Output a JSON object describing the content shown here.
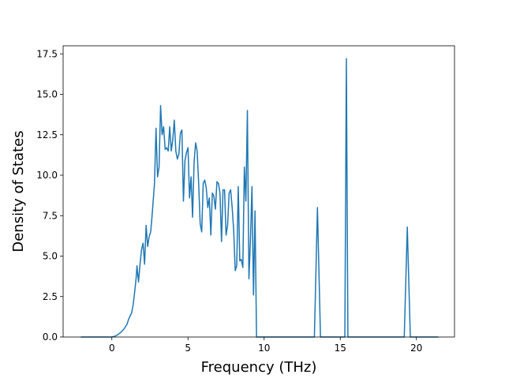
{
  "chart_data": {
    "type": "line",
    "xlabel": "Frequency (THz)",
    "ylabel": "Density of States",
    "xlim": [
      -3.2,
      22.5
    ],
    "ylim": [
      0,
      18
    ],
    "xticks": [
      0,
      5,
      10,
      15,
      20
    ],
    "yticks": [
      0.0,
      2.5,
      5.0,
      7.5,
      10.0,
      12.5,
      15.0,
      17.5
    ],
    "xtick_labels": [
      "0",
      "5",
      "10",
      "15",
      "20"
    ],
    "ytick_labels": [
      "0.0",
      "2.5",
      "5.0",
      "7.5",
      "10.0",
      "12.5",
      "15.0",
      "17.5"
    ],
    "grid": false,
    "series": [
      {
        "color": "#1f77b4",
        "x": [
          -2.0,
          -1.0,
          0.0,
          0.2,
          0.4,
          0.6,
          0.8,
          1.0,
          1.1,
          1.3,
          1.4,
          1.5,
          1.6,
          1.65,
          1.75,
          1.85,
          1.95,
          2.05,
          2.15,
          2.25,
          2.35,
          2.45,
          2.55,
          2.65,
          2.8,
          2.9,
          3.0,
          3.1,
          3.2,
          3.3,
          3.4,
          3.5,
          3.6,
          3.7,
          3.8,
          3.9,
          4.0,
          4.1,
          4.2,
          4.3,
          4.4,
          4.5,
          4.6,
          4.7,
          4.8,
          4.9,
          5.0,
          5.1,
          5.2,
          5.3,
          5.4,
          5.5,
          5.6,
          5.7,
          5.8,
          5.9,
          6.0,
          6.1,
          6.2,
          6.3,
          6.4,
          6.5,
          6.6,
          6.7,
          6.8,
          6.9,
          7.0,
          7.1,
          7.2,
          7.3,
          7.4,
          7.5,
          7.6,
          7.7,
          7.8,
          7.9,
          8.0,
          8.1,
          8.2,
          8.3,
          8.4,
          8.5,
          8.6,
          8.7,
          8.8,
          8.9,
          9.0,
          9.1,
          9.2,
          9.3,
          9.4,
          9.5,
          9.6,
          9.7,
          9.8,
          9.9,
          10.0,
          10.1,
          10.2,
          10.3,
          10.4,
          10.5,
          10.6,
          10.7,
          10.8,
          11.0,
          12.0,
          13.0,
          13.3,
          13.5,
          13.7,
          14.0,
          15.0,
          15.3,
          15.4,
          15.5,
          15.6,
          16.0,
          17.0,
          18.0,
          19.0,
          19.2,
          19.4,
          19.6,
          20.0,
          21.0,
          21.4
        ],
        "y": [
          0.0,
          0.0,
          0.0,
          0.05,
          0.15,
          0.3,
          0.5,
          0.8,
          1.1,
          1.5,
          2.0,
          2.8,
          3.7,
          4.4,
          3.4,
          4.5,
          5.4,
          5.8,
          4.5,
          6.9,
          5.6,
          6.2,
          6.5,
          7.6,
          9.5,
          12.9,
          9.9,
          10.5,
          14.3,
          12.5,
          13.0,
          11.6,
          11.7,
          11.5,
          13.0,
          11.5,
          12.2,
          13.4,
          11.5,
          11.0,
          11.3,
          12.6,
          12.8,
          8.4,
          10.9,
          11.4,
          11.7,
          8.6,
          9.9,
          7.4,
          10.8,
          12.0,
          11.5,
          9.5,
          7.0,
          6.5,
          9.5,
          9.7,
          9.2,
          8.0,
          8.6,
          6.3,
          8.9,
          8.7,
          7.9,
          9.6,
          9.5,
          8.9,
          5.9,
          9.1,
          9.1,
          6.3,
          6.9,
          8.9,
          9.1,
          8.0,
          6.6,
          4.1,
          4.4,
          9.3,
          4.7,
          4.8,
          4.3,
          10.5,
          8.4,
          14.0,
          3.6,
          6.0,
          9.3,
          2.6,
          7.8,
          0.0,
          0.0,
          0.0,
          0.0,
          0.0,
          0.0,
          0.0,
          0.0,
          0.0,
          0.0,
          0.0,
          0.0,
          0.0,
          0.0,
          0.0,
          0.0,
          0.0,
          0.0,
          8.0,
          0.0,
          0.0,
          0.0,
          0.0,
          17.2,
          0.0,
          0.0,
          0.0,
          0.0,
          0.0,
          0.0,
          0.0,
          6.8,
          0.0,
          0.0,
          0.0,
          0.0
        ]
      }
    ]
  }
}
